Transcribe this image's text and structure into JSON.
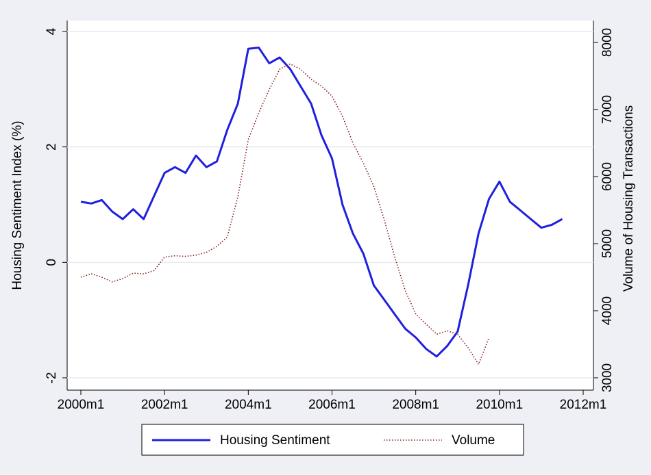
{
  "chart_data": {
    "type": "line",
    "ylabel": "Housing Sentiment Index (%)",
    "y2label": "Volume of Housing Transactions",
    "x": [
      "2000m1",
      "2000m4",
      "2000m7",
      "2000m10",
      "2001m1",
      "2001m4",
      "2001m7",
      "2001m10",
      "2002m1",
      "2002m4",
      "2002m7",
      "2002m10",
      "2003m1",
      "2003m4",
      "2003m7",
      "2003m10",
      "2004m1",
      "2004m4",
      "2004m7",
      "2004m10",
      "2005m1",
      "2005m4",
      "2005m7",
      "2005m10",
      "2006m1",
      "2006m4",
      "2006m7",
      "2006m10",
      "2007m1",
      "2007m4",
      "2007m7",
      "2007m10",
      "2008m1",
      "2008m4",
      "2008m7",
      "2008m10",
      "2009m1",
      "2009m4",
      "2009m7",
      "2009m10",
      "2010m1",
      "2010m4",
      "2010m7",
      "2010m10",
      "2011m1",
      "2011m4",
      "2011m7"
    ],
    "series": [
      {
        "name": "Housing Sentiment",
        "color": "#1f1fe0",
        "values": [
          1.05,
          1.02,
          1.08,
          0.88,
          0.75,
          0.92,
          0.75,
          1.15,
          1.55,
          1.65,
          1.55,
          1.85,
          1.65,
          1.75,
          2.3,
          2.75,
          3.7,
          3.72,
          3.45,
          3.55,
          3.35,
          3.05,
          2.75,
          2.2,
          1.8,
          1.0,
          0.5,
          0.15,
          -0.4,
          -0.65,
          -0.9,
          -1.15,
          -1.3,
          -1.5,
          -1.63,
          -1.45,
          -1.2,
          -0.4,
          0.5,
          1.1,
          1.4,
          1.05,
          0.9,
          0.75,
          0.6,
          0.65,
          0.75
        ]
      },
      {
        "name": "Volume",
        "color": "#8b1a1a",
        "axis": "y2",
        "values": [
          4500,
          4550,
          4500,
          4430,
          4480,
          4560,
          4550,
          4600,
          4800,
          4820,
          4810,
          4830,
          4870,
          4960,
          5100,
          5700,
          6550,
          6950,
          7300,
          7600,
          7680,
          7600,
          7450,
          7350,
          7200,
          6900,
          6500,
          6200,
          5850,
          5350,
          4800,
          4300,
          3950,
          3800,
          3650,
          3700,
          3650,
          3450,
          3200,
          3600,
          null,
          null,
          null,
          null,
          null,
          null,
          null
        ]
      }
    ],
    "xlim": [
      "2000m1",
      "2012m1"
    ],
    "xticks": [
      "2000m1",
      "2002m1",
      "2004m1",
      "2006m1",
      "2008m1",
      "2010m1",
      "2012m1"
    ],
    "ylim": [
      -2,
      4
    ],
    "yticks": [
      -2,
      0,
      2,
      4
    ],
    "y2lim": [
      3000,
      8000
    ],
    "y2ticks": [
      3000,
      4000,
      5000,
      6000,
      7000,
      8000
    ],
    "grid": true,
    "legend": "bottom"
  }
}
